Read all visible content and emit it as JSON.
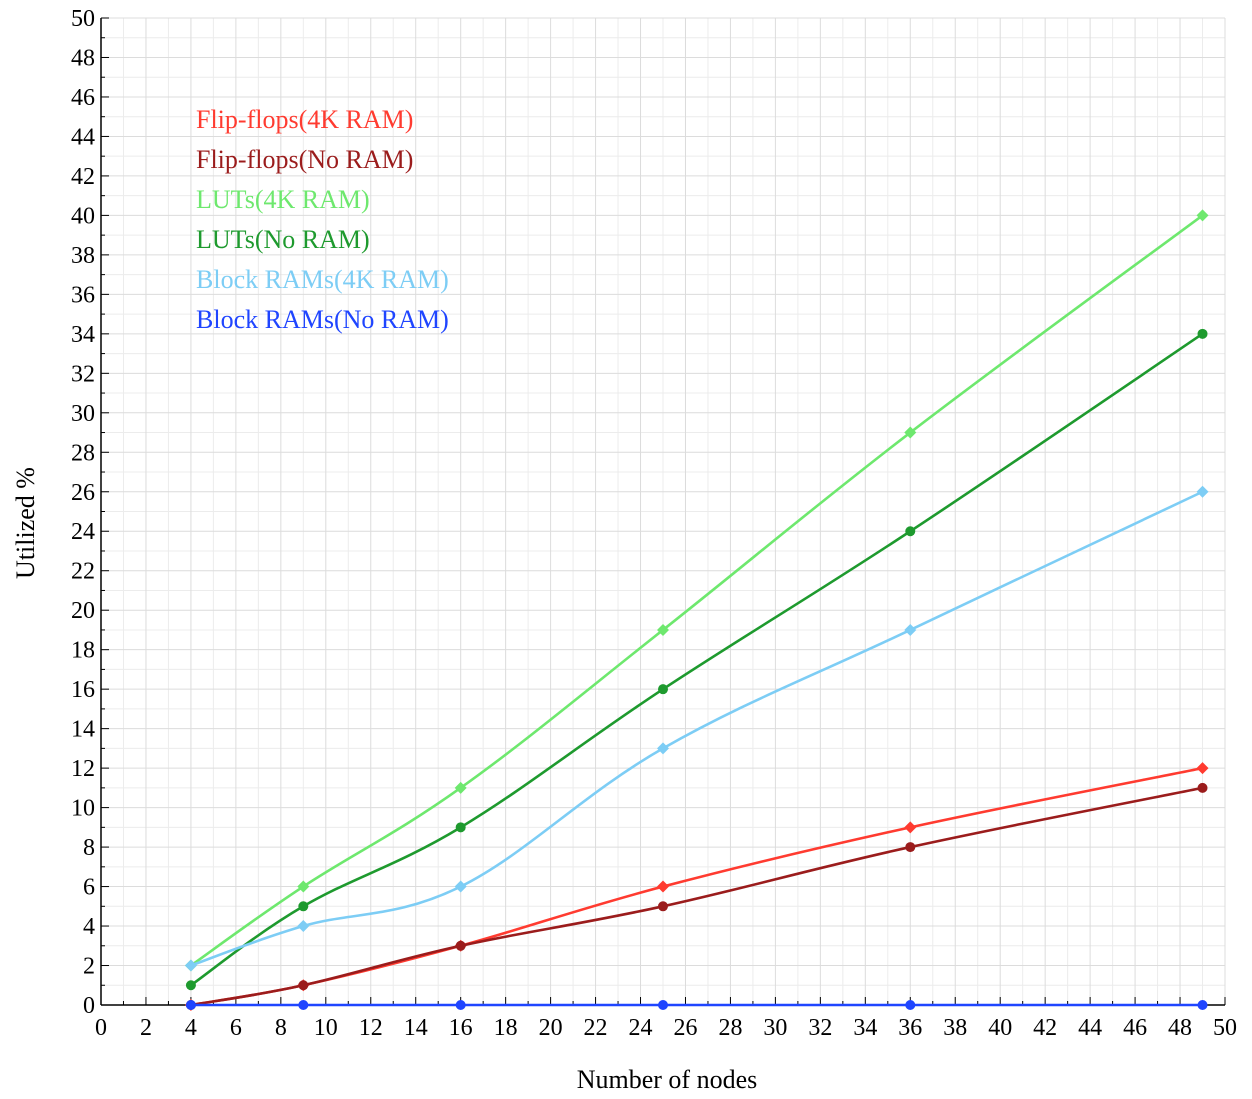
{
  "chart_data": {
    "type": "line",
    "title": "",
    "xlabel": "Number of nodes",
    "ylabel": "Utilized %",
    "xlim": [
      0,
      50
    ],
    "ylim": [
      0,
      50
    ],
    "xticks": [
      0,
      2,
      4,
      6,
      8,
      10,
      12,
      14,
      16,
      18,
      20,
      22,
      24,
      26,
      28,
      30,
      32,
      34,
      36,
      38,
      40,
      42,
      44,
      46,
      48,
      50
    ],
    "yticks": [
      0,
      2,
      4,
      6,
      8,
      10,
      12,
      14,
      16,
      18,
      20,
      22,
      24,
      26,
      28,
      30,
      32,
      34,
      36,
      38,
      40,
      42,
      44,
      46,
      48,
      50
    ],
    "grid": true,
    "legend_position": "top-left",
    "x": [
      4,
      9,
      16,
      25,
      36,
      49
    ],
    "series": [
      {
        "name": "Flip-flops(4K RAM)",
        "color": "#ff3b30",
        "marker": "diamond",
        "values": [
          0,
          1,
          3,
          6,
          9,
          12
        ]
      },
      {
        "name": "Flip-flops(No RAM)",
        "color": "#9b1c1c",
        "marker": "circle",
        "values": [
          0,
          1,
          3,
          5,
          8,
          11
        ]
      },
      {
        "name": "LUTs(4K RAM)",
        "color": "#6ee86e",
        "marker": "diamond",
        "values": [
          2,
          6,
          11,
          19,
          29,
          40
        ]
      },
      {
        "name": "LUTs(No RAM)",
        "color": "#1e9a2e",
        "marker": "circle",
        "values": [
          1,
          5,
          9,
          16,
          24,
          34
        ]
      },
      {
        "name": "Block RAMs(4K RAM)",
        "color": "#7dcdf5",
        "marker": "diamond",
        "values": [
          2,
          4,
          6,
          13,
          19,
          26
        ]
      },
      {
        "name": "Block RAMs(No RAM)",
        "color": "#1f45ff",
        "marker": "circle",
        "values": [
          0,
          0,
          0,
          0,
          0,
          0
        ]
      }
    ]
  }
}
